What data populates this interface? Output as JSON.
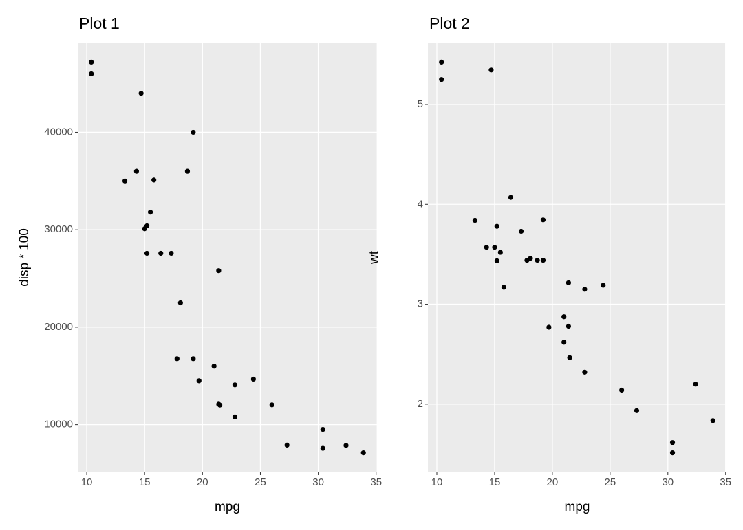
{
  "chart_data": [
    {
      "type": "scatter",
      "title": "Plot 1",
      "x_label": "mpg",
      "y_label": "disp * 100",
      "color": "#000000",
      "grid": true,
      "x": [
        21.0,
        21.0,
        22.8,
        21.4,
        18.7,
        18.1,
        14.3,
        24.4,
        22.8,
        19.2,
        17.8,
        16.4,
        17.3,
        15.2,
        10.4,
        10.4,
        14.7,
        32.4,
        30.4,
        33.9,
        21.5,
        15.5,
        15.2,
        13.3,
        19.2,
        27.3,
        26.0,
        30.4,
        15.8,
        19.7,
        15.0,
        21.4
      ],
      "values": [
        16000,
        16000,
        10800,
        25800,
        36000,
        22500,
        36000,
        14670,
        14080,
        16760,
        16760,
        27580,
        27580,
        27580,
        47200,
        46000,
        44000,
        7870,
        7570,
        7110,
        12010,
        31800,
        30400,
        35000,
        40000,
        7900,
        12030,
        9510,
        35100,
        14500,
        30100,
        12100
      ],
      "xlim": [
        9.225,
        35.075
      ],
      "xticks": [
        10,
        15,
        20,
        25,
        30,
        35
      ],
      "ylim": [
        5105.5,
        49204.5
      ],
      "yticks": [
        10000,
        20000,
        30000,
        40000
      ]
    },
    {
      "type": "scatter",
      "title": "Plot 2",
      "x_label": "mpg",
      "y_label": "wt",
      "color": "#000000",
      "grid": true,
      "x": [
        21.0,
        21.0,
        22.8,
        21.4,
        18.7,
        18.1,
        14.3,
        24.4,
        22.8,
        19.2,
        17.8,
        16.4,
        17.3,
        15.2,
        10.4,
        10.4,
        14.7,
        32.4,
        30.4,
        33.9,
        21.5,
        15.5,
        15.2,
        13.3,
        19.2,
        27.3,
        26.0,
        30.4,
        15.8,
        19.7,
        15.0,
        21.4
      ],
      "values": [
        2.62,
        2.875,
        2.32,
        3.215,
        3.44,
        3.46,
        3.57,
        3.19,
        3.15,
        3.44,
        3.44,
        4.07,
        3.73,
        3.78,
        5.25,
        5.424,
        5.345,
        2.2,
        1.615,
        1.835,
        2.465,
        3.52,
        3.435,
        3.84,
        3.845,
        1.935,
        2.14,
        1.513,
        3.17,
        2.77,
        3.57,
        2.78
      ],
      "xlim": [
        9.225,
        35.075
      ],
      "xticks": [
        10,
        15,
        20,
        25,
        30,
        35
      ],
      "ylim": [
        1.31745,
        5.61955
      ],
      "yticks": [
        2,
        3,
        4,
        5
      ]
    }
  ]
}
